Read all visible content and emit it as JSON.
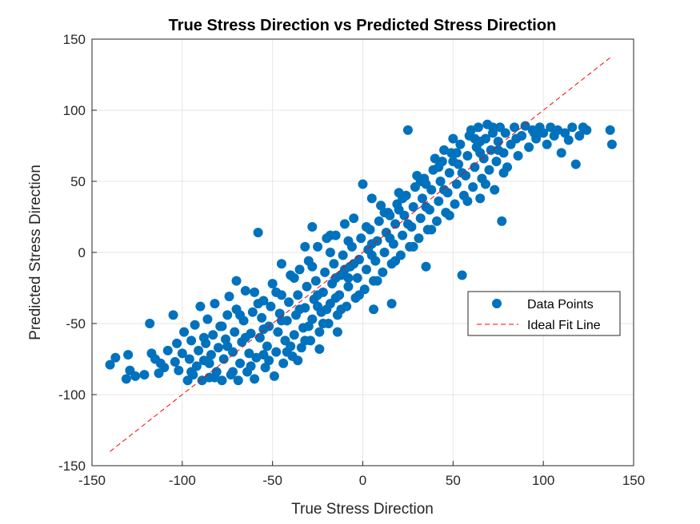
{
  "chart_data": {
    "type": "scatter",
    "title": "True Stress Direction vs Predicted Stress Direction",
    "xlabel": "True Stress Direction",
    "ylabel": "Predicted Stress Direction",
    "xlim": [
      -150,
      150
    ],
    "ylim": [
      -150,
      150
    ],
    "xticks": [
      -150,
      -100,
      -50,
      0,
      50,
      100,
      150
    ],
    "yticks": [
      -150,
      -100,
      -50,
      0,
      50,
      100,
      150
    ],
    "grid": true,
    "legend_position": "right",
    "series": [
      {
        "name": "Data Points",
        "kind": "markers",
        "color": "#0072BD",
        "points": [
          [
            -140,
            -79
          ],
          [
            -137,
            -74
          ],
          [
            -131,
            -89
          ],
          [
            -130,
            -72
          ],
          [
            -129,
            -83
          ],
          [
            -126,
            -87
          ],
          [
            -121,
            -86
          ],
          [
            -118,
            -50
          ],
          [
            -117,
            -71
          ],
          [
            -115,
            -75
          ],
          [
            -113,
            -85
          ],
          [
            -112,
            -78
          ],
          [
            -110,
            -81
          ],
          [
            -108,
            -69
          ],
          [
            -105,
            -44
          ],
          [
            -104,
            -77
          ],
          [
            -103,
            -64
          ],
          [
            -102,
            -83
          ],
          [
            -100,
            -71
          ],
          [
            -99,
            -56
          ],
          [
            -97,
            -90
          ],
          [
            -96,
            -75
          ],
          [
            -95,
            -62
          ],
          [
            -94,
            -86
          ],
          [
            -93,
            -51
          ],
          [
            -92,
            -80
          ],
          [
            -91,
            -69
          ],
          [
            -90,
            -38
          ],
          [
            -89,
            -90
          ],
          [
            -88,
            -76
          ],
          [
            -87,
            -64
          ],
          [
            -86,
            -47
          ],
          [
            -85,
            -88
          ],
          [
            -84,
            -72
          ],
          [
            -83,
            -58
          ],
          [
            -82,
            -36
          ],
          [
            -81,
            -84
          ],
          [
            -80,
            -67
          ],
          [
            -79,
            -52
          ],
          [
            -78,
            -90
          ],
          [
            -77,
            -75
          ],
          [
            -76,
            -61
          ],
          [
            -75,
            -44
          ],
          [
            -74,
            -31
          ],
          [
            -73,
            -86
          ],
          [
            -72,
            -70
          ],
          [
            -71,
            -56
          ],
          [
            -70,
            -40
          ],
          [
            -69,
            -90
          ],
          [
            -68,
            -78
          ],
          [
            -67,
            -63
          ],
          [
            -66,
            -48
          ],
          [
            -65,
            -27
          ],
          [
            -64,
            -84
          ],
          [
            -63,
            -71
          ],
          [
            -62,
            -57
          ],
          [
            -61,
            -42
          ],
          [
            -60,
            -89
          ],
          [
            -59,
            -74
          ],
          [
            -58,
            14
          ],
          [
            -57,
            -60
          ],
          [
            -56,
            -46
          ],
          [
            -55,
            -34
          ],
          [
            -54,
            -81
          ],
          [
            -53,
            -66
          ],
          [
            -52,
            -52
          ],
          [
            -51,
            -38
          ],
          [
            -50,
            -22
          ],
          [
            -49,
            -87
          ],
          [
            -48,
            -70
          ],
          [
            -47,
            -56
          ],
          [
            -46,
            -43
          ],
          [
            -45,
            -30
          ],
          [
            -44,
            -78
          ],
          [
            -43,
            -62
          ],
          [
            -42,
            -48
          ],
          [
            -41,
            -35
          ],
          [
            -40,
            -16
          ],
          [
            -39,
            -73
          ],
          [
            -38,
            -58
          ],
          [
            -37,
            -44
          ],
          [
            -36,
            -30
          ],
          [
            -35,
            -12
          ],
          [
            -34,
            -67
          ],
          [
            -33,
            -53
          ],
          [
            -32,
            -39
          ],
          [
            -31,
            -24
          ],
          [
            -30,
            -6
          ],
          [
            -29,
            -62
          ],
          [
            -28,
            -47
          ],
          [
            -27,
            -33
          ],
          [
            -26,
            -20
          ],
          [
            -25,
            4
          ],
          [
            -24,
            -56
          ],
          [
            -23,
            -42
          ],
          [
            -22,
            -28
          ],
          [
            -21,
            -14
          ],
          [
            -20,
            10
          ],
          [
            -19,
            -50
          ],
          [
            -18,
            -36
          ],
          [
            -17,
            -22
          ],
          [
            -16,
            -8
          ],
          [
            -15,
            12
          ],
          [
            -14,
            -44
          ],
          [
            -13,
            -30
          ],
          [
            -12,
            -16
          ],
          [
            -11,
            -2
          ],
          [
            -10,
            20
          ],
          [
            -9,
            -38
          ],
          [
            -8,
            -24
          ],
          [
            -7,
            -10
          ],
          [
            -6,
            4
          ],
          [
            -5,
            24
          ],
          [
            -4,
            -32
          ],
          [
            -3,
            -18
          ],
          [
            -2,
            -5
          ],
          [
            -1,
            10
          ],
          [
            0,
            48
          ],
          [
            1,
            -26
          ],
          [
            2,
            -12
          ],
          [
            3,
            2
          ],
          [
            4,
            16
          ],
          [
            5,
            38
          ],
          [
            6,
            -20
          ],
          [
            7,
            -6
          ],
          [
            8,
            8
          ],
          [
            9,
            22
          ],
          [
            10,
            33
          ],
          [
            11,
            -14
          ],
          [
            12,
            0
          ],
          [
            13,
            14
          ],
          [
            14,
            28
          ],
          [
            15,
            26
          ],
          [
            16,
            -8
          ],
          [
            17,
            6
          ],
          [
            18,
            20
          ],
          [
            19,
            34
          ],
          [
            20,
            42
          ],
          [
            21,
            -2
          ],
          [
            22,
            12
          ],
          [
            23,
            26
          ],
          [
            24,
            40
          ],
          [
            25,
            86
          ],
          [
            26,
            4
          ],
          [
            27,
            18
          ],
          [
            28,
            32
          ],
          [
            29,
            46
          ],
          [
            30,
            54
          ],
          [
            31,
            10
          ],
          [
            32,
            24
          ],
          [
            33,
            38
          ],
          [
            34,
            52
          ],
          [
            35,
            -10
          ],
          [
            36,
            16
          ],
          [
            37,
            30
          ],
          [
            38,
            44
          ],
          [
            39,
            58
          ],
          [
            40,
            66
          ],
          [
            41,
            22
          ],
          [
            42,
            36
          ],
          [
            43,
            50
          ],
          [
            44,
            64
          ],
          [
            45,
            72
          ],
          [
            46,
            28
          ],
          [
            47,
            42
          ],
          [
            48,
            56
          ],
          [
            49,
            70
          ],
          [
            50,
            80
          ],
          [
            51,
            34
          ],
          [
            52,
            48
          ],
          [
            53,
            62
          ],
          [
            54,
            76
          ],
          [
            55,
            -16
          ],
          [
            56,
            40
          ],
          [
            57,
            54
          ],
          [
            58,
            68
          ],
          [
            59,
            82
          ],
          [
            60,
            86
          ],
          [
            61,
            46
          ],
          [
            62,
            60
          ],
          [
            63,
            74
          ],
          [
            64,
            88
          ],
          [
            65,
            38
          ],
          [
            66,
            52
          ],
          [
            67,
            66
          ],
          [
            68,
            80
          ],
          [
            69,
            90
          ],
          [
            70,
            58
          ],
          [
            71,
            72
          ],
          [
            72,
            84
          ],
          [
            73,
            44
          ],
          [
            74,
            64
          ],
          [
            75,
            78
          ],
          [
            76,
            88
          ],
          [
            77,
            22
          ],
          [
            78,
            70
          ],
          [
            79,
            84
          ],
          [
            80,
            60
          ],
          [
            82,
            76
          ],
          [
            84,
            88
          ],
          [
            86,
            68
          ],
          [
            88,
            82
          ],
          [
            90,
            89
          ],
          [
            92,
            74
          ],
          [
            94,
            86
          ],
          [
            96,
            80
          ],
          [
            98,
            88
          ],
          [
            100,
            84
          ],
          [
            102,
            76
          ],
          [
            104,
            88
          ],
          [
            106,
            82
          ],
          [
            108,
            86
          ],
          [
            110,
            70
          ],
          [
            112,
            84
          ],
          [
            114,
            79
          ],
          [
            116,
            88
          ],
          [
            118,
            62
          ],
          [
            120,
            82
          ],
          [
            122,
            88
          ],
          [
            124,
            86
          ],
          [
            137,
            86
          ],
          [
            138,
            76
          ],
          [
            -60,
            -28
          ],
          [
            -45,
            -8
          ],
          [
            -30,
            -52
          ],
          [
            -15,
            -32
          ],
          [
            -28,
            18
          ],
          [
            -20,
            -40
          ],
          [
            -8,
            -18
          ],
          [
            -32,
            4
          ],
          [
            -70,
            -20
          ],
          [
            -55,
            -72
          ],
          [
            -40,
            -66
          ],
          [
            -25,
            -38
          ],
          [
            -10,
            -12
          ],
          [
            5,
            6
          ],
          [
            20,
            30
          ],
          [
            35,
            48
          ],
          [
            50,
            64
          ],
          [
            65,
            78
          ],
          [
            -95,
            -84
          ],
          [
            -85,
            -78
          ],
          [
            -75,
            -66
          ],
          [
            -65,
            -60
          ],
          [
            -55,
            -54
          ],
          [
            -45,
            -48
          ],
          [
            -35,
            -40
          ],
          [
            -25,
            -30
          ],
          [
            -15,
            -18
          ],
          [
            -5,
            -8
          ],
          [
            5,
            -2
          ],
          [
            15,
            10
          ],
          [
            25,
            20
          ],
          [
            35,
            32
          ],
          [
            45,
            44
          ],
          [
            55,
            56
          ],
          [
            65,
            70
          ],
          [
            75,
            72
          ],
          [
            85,
            80
          ],
          [
            95,
            84
          ],
          [
            -88,
            -60
          ],
          [
            -78,
            -52
          ],
          [
            -68,
            -44
          ],
          [
            -58,
            -36
          ],
          [
            -48,
            -28
          ],
          [
            -38,
            -18
          ],
          [
            -28,
            -10
          ],
          [
            -18,
            0
          ],
          [
            -8,
            8
          ],
          [
            2,
            18
          ],
          [
            12,
            28
          ],
          [
            22,
            38
          ],
          [
            32,
            50
          ],
          [
            42,
            60
          ],
          [
            52,
            70
          ],
          [
            62,
            80
          ],
          [
            72,
            88
          ],
          [
            -82,
            -88
          ],
          [
            -72,
            -84
          ],
          [
            -62,
            -80
          ],
          [
            -52,
            -76
          ],
          [
            -42,
            -70
          ],
          [
            -32,
            -62
          ],
          [
            -22,
            -50
          ],
          [
            -12,
            -40
          ],
          [
            -2,
            -30
          ],
          [
            8,
            -20
          ],
          [
            18,
            -6
          ],
          [
            28,
            4
          ],
          [
            38,
            16
          ],
          [
            48,
            26
          ],
          [
            58,
            36
          ],
          [
            68,
            48
          ],
          [
            78,
            56
          ],
          [
            -36,
            -76
          ],
          [
            -24,
            -68
          ],
          [
            -14,
            -56
          ],
          [
            6,
            -40
          ],
          [
            16,
            -36
          ],
          [
            -18,
            12
          ]
        ]
      },
      {
        "name": "Ideal Fit Line",
        "kind": "dashed-line",
        "color": "#FF0000",
        "x": [
          -140,
          138
        ],
        "y": [
          -140,
          138
        ]
      }
    ]
  }
}
